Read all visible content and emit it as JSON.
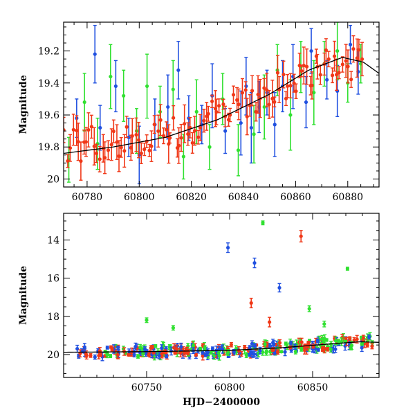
{
  "chart_data": [
    {
      "type": "scatter",
      "panel": "top",
      "xlabel": "",
      "ylabel": "Magnitude",
      "xlim": [
        60771,
        60892
      ],
      "ylim": [
        20.05,
        19.02
      ],
      "y_inverted": true,
      "xticks": [
        60780,
        60800,
        60820,
        60840,
        60860,
        60880
      ],
      "yticks": [
        19.2,
        19.4,
        19.6,
        19.8,
        20
      ],
      "xtick_labels": [
        "60780",
        "60800",
        "60820",
        "60840",
        "60860",
        "60880"
      ],
      "ytick_labels": [
        "19.2",
        "19.4",
        "19.6",
        "19.8",
        "20"
      ],
      "grid": false,
      "legend": "none",
      "error_bars": true,
      "series": [
        {
          "color": "#2050e0",
          "points": [
            [
              60776,
              19.62,
              0.12
            ],
            [
              60783,
              19.22,
              0.18
            ],
            [
              60785,
              19.68,
              0.14
            ],
            [
              60791,
              19.42,
              0.16
            ],
            [
              60796,
              19.74,
              0.12
            ],
            [
              60800,
              19.85,
              0.18
            ],
            [
              60806,
              19.66,
              0.16
            ],
            [
              60811,
              19.55,
              0.2
            ],
            [
              60815,
              19.32,
              0.18
            ],
            [
              60819,
              19.62,
              0.14
            ],
            [
              60824,
              19.66,
              0.12
            ],
            [
              60828,
              19.48,
              0.2
            ],
            [
              60833,
              19.7,
              0.14
            ],
            [
              60839,
              19.65,
              0.2
            ],
            [
              60841,
              19.42,
              0.18
            ],
            [
              60843,
              19.68,
              0.22
            ],
            [
              60846,
              19.55,
              0.16
            ],
            [
              60849,
              19.46,
              0.14
            ],
            [
              60852,
              19.66,
              0.2
            ],
            [
              60855,
              19.42,
              0.16
            ],
            [
              60859,
              19.36,
              0.2
            ],
            [
              60864,
              19.52,
              0.16
            ],
            [
              60866,
              19.2,
              0.14
            ],
            [
              60872,
              19.38,
              0.12
            ],
            [
              60876,
              19.45,
              0.16
            ],
            [
              60881,
              19.16,
              0.12
            ],
            [
              60884,
              19.33,
              0.14
            ]
          ]
        },
        {
          "color": "#30e030",
          "points": [
            [
              60773,
              19.88,
              0.14
            ],
            [
              60779,
              19.52,
              0.18
            ],
            [
              60784,
              19.78,
              0.16
            ],
            [
              60789,
              19.36,
              0.2
            ],
            [
              60794,
              19.48,
              0.16
            ],
            [
              60799,
              19.7,
              0.14
            ],
            [
              60803,
              19.42,
              0.2
            ],
            [
              60808,
              19.58,
              0.16
            ],
            [
              60813,
              19.44,
              0.18
            ],
            [
              60817,
              19.86,
              0.14
            ],
            [
              60822,
              19.58,
              0.2
            ],
            [
              60827,
              19.8,
              0.14
            ],
            [
              60832,
              19.5,
              0.16
            ],
            [
              60838,
              19.82,
              0.16
            ],
            [
              60844,
              19.72,
              0.18
            ],
            [
              60848,
              19.55,
              0.2
            ],
            [
              60853,
              19.32,
              0.16
            ],
            [
              60858,
              19.6,
              0.22
            ],
            [
              60862,
              19.3,
              0.16
            ],
            [
              60867,
              19.46,
              0.2
            ],
            [
              60871,
              19.28,
              0.14
            ],
            [
              60876,
              19.2,
              0.18
            ],
            [
              60880,
              19.4,
              0.12
            ],
            [
              60885,
              19.28,
              0.12
            ]
          ]
        }
      ],
      "red_series_note": "dense red series with error bars following the model trend",
      "red_series": {
        "color": "#f03818",
        "trend": [
          [
            60771,
            19.8
          ],
          [
            60800,
            19.75
          ],
          [
            60820,
            19.68
          ],
          [
            60840,
            19.54
          ],
          [
            60860,
            19.38
          ],
          [
            60876,
            19.26
          ],
          [
            60886,
            19.3
          ]
        ],
        "x_range": [
          60771,
          60886
        ],
        "count": 110
      },
      "model_curve": {
        "color": "#000000",
        "points": [
          [
            60771,
            19.84
          ],
          [
            60790,
            19.8
          ],
          [
            60810,
            19.74
          ],
          [
            60830,
            19.63
          ],
          [
            60850,
            19.47
          ],
          [
            60865,
            19.32
          ],
          [
            60878,
            19.24
          ],
          [
            60886,
            19.27
          ],
          [
            60892,
            19.34
          ]
        ]
      }
    },
    {
      "type": "scatter",
      "panel": "bottom",
      "xlabel": "HJD−2400000",
      "ylabel": "Magnitude",
      "xlim": [
        60700,
        60890
      ],
      "ylim": [
        21.2,
        12.6
      ],
      "y_inverted": true,
      "xticks": [
        60750,
        60800,
        60850
      ],
      "yticks": [
        14,
        16,
        18,
        20
      ],
      "xtick_labels": [
        "60750",
        "60800",
        "60850"
      ],
      "ytick_labels": [
        "14",
        "16",
        "18",
        "20"
      ],
      "grid": false,
      "legend": "none",
      "error_bars": true,
      "outliers": [
        {
          "color": "#2050e0",
          "x": 60799,
          "y": 14.4,
          "err": 0.25
        },
        {
          "color": "#2050e0",
          "x": 60815,
          "y": 15.2,
          "err": 0.25
        },
        {
          "color": "#2050e0",
          "x": 60830,
          "y": 16.5,
          "err": 0.22
        },
        {
          "color": "#f03818",
          "x": 60843,
          "y": 13.8,
          "err": 0.3
        },
        {
          "color": "#f03818",
          "x": 60813,
          "y": 17.3,
          "err": 0.25
        },
        {
          "color": "#f03818",
          "x": 60824,
          "y": 18.3,
          "err": 0.25
        },
        {
          "color": "#30e030",
          "x": 60820,
          "y": 13.1,
          "err": 0.1
        },
        {
          "color": "#30e030",
          "x": 60871,
          "y": 15.5,
          "err": 0.08
        },
        {
          "color": "#30e030",
          "x": 60848,
          "y": 17.6,
          "err": 0.15
        },
        {
          "color": "#30e030",
          "x": 60750,
          "y": 18.2,
          "err": 0.12
        },
        {
          "color": "#30e030",
          "x": 60766,
          "y": 18.6,
          "err": 0.12
        },
        {
          "color": "#30e030",
          "x": 60857,
          "y": 18.4,
          "err": 0.15
        }
      ],
      "baseline": {
        "x_range": [
          60708,
          60886
        ],
        "trend": [
          [
            60708,
            19.85
          ],
          [
            60760,
            19.82
          ],
          [
            60800,
            19.78
          ],
          [
            60830,
            19.65
          ],
          [
            60860,
            19.45
          ],
          [
            60886,
            19.32
          ]
        ],
        "colors": [
          "#f03818",
          "#2050e0",
          "#30e030"
        ]
      },
      "model_curve": {
        "color": "#000000",
        "points": [
          [
            60700,
            19.88
          ],
          [
            60750,
            19.85
          ],
          [
            60800,
            19.78
          ],
          [
            60830,
            19.65
          ],
          [
            60860,
            19.45
          ],
          [
            60878,
            19.33
          ],
          [
            60890,
            19.36
          ]
        ]
      }
    }
  ]
}
